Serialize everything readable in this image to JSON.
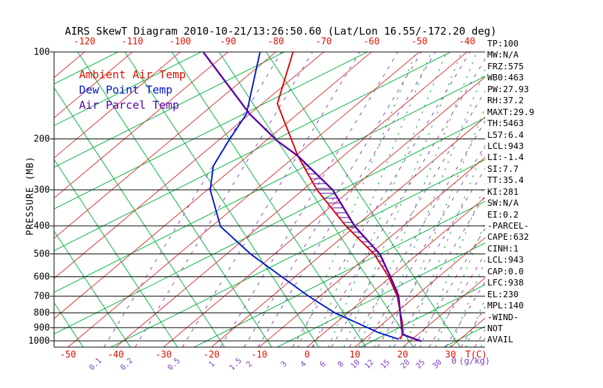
{
  "title": "AIRS SkewT Diagram 2010-10-21/13:26:50.60 (Lat/Lon 16.55/-172.20 deg)",
  "legend": {
    "ambient_label": "Ambient Air Temp",
    "dew_label": "Dew Point Temp",
    "parcel_label": "Air Parcel Temp"
  },
  "axes": {
    "pressure_axis_title": "PRESSURE (MB)",
    "pressure_labels": [
      100,
      200,
      300,
      400,
      500,
      600,
      700,
      800,
      900,
      1000
    ],
    "top_temp_labels": [
      -120,
      -110,
      -100,
      -90,
      -80,
      -70,
      -60,
      -50,
      -40
    ],
    "bottom_temp_labels": [
      -50,
      -40,
      -30,
      -20,
      -10,
      0,
      10,
      20,
      30
    ],
    "temp_unit_label": "T(C)",
    "mixing_ratio_labels": [
      "0.1",
      "0.2",
      "0.5",
      "1",
      "1.5",
      "2",
      "3",
      "4",
      "6",
      "8",
      "10",
      "12",
      "15",
      "20",
      "25",
      "30"
    ],
    "mixing_unit_prefix": "Θ",
    "mixing_unit_label": "(g/kg)"
  },
  "side_panel": {
    "items": [
      "TP:100",
      "MW:N/A",
      "FRZ:575",
      "WB0:463",
      "PW:27.93",
      "RH:37.2",
      "MAXT:29.9",
      "TH:5463",
      "L57:6.4",
      "LCL:943",
      "LI:-1.4",
      "SI:7.7",
      "TT:35.4",
      "KI:281",
      "SW:N/A",
      "EI:0.2",
      "-PARCEL-",
      "CAPE:632",
      "CINH:1",
      "LCL:943",
      "CAP:0.0",
      "LFC:938",
      "EL:230",
      "MPL:140",
      "-WIND-",
      "NOT",
      "AVAIL"
    ]
  },
  "colors": {
    "ambient": "#e00000",
    "dew_point": "#0018cc",
    "parcel": "#5a00a8",
    "isotherm_grid": "#dd3333",
    "adiabat_grid": "#00b33c",
    "mixing_grid": "#8040c0",
    "axis": "#000000",
    "label_red": "#dd1100"
  },
  "chart_data": {
    "type": "line",
    "title": "AIRS SkewT Diagram 2010-10-21/13:26:50.60 (Lat/Lon 16.55/-172.20 deg)",
    "xlabel": "Temperature (C), skewed axis",
    "ylabel": "Pressure (MB), log scale",
    "x_range_at_surface": [
      -50,
      30
    ],
    "y_range": [
      100,
      1000
    ],
    "grid": {
      "isotherm_step_c": 10,
      "isotherm_min_c": -160,
      "isotherm_max_c": 60,
      "mixing_ratio_lines_g_kg": [
        0.1,
        0.2,
        0.5,
        1,
        1.5,
        2,
        3,
        4,
        6,
        8,
        10,
        12,
        15,
        20,
        25,
        30
      ]
    },
    "series": [
      {
        "name": "Ambient Air Temp",
        "color_key": "ambient",
        "points_p_t": [
          [
            100,
            -76.4
          ],
          [
            151,
            -66.8
          ],
          [
            229,
            -49.5
          ],
          [
            300,
            -37.1
          ],
          [
            402,
            -21.8
          ],
          [
            501,
            -9.1
          ],
          [
            598,
            -0.6
          ],
          [
            699,
            6.1
          ],
          [
            800,
            11.0
          ],
          [
            869,
            14.0
          ],
          [
            950,
            16.8
          ],
          [
            987,
            17.5
          ]
        ]
      },
      {
        "name": "Dew Point Temp",
        "color_key": "dew_point",
        "points_p_t": [
          [
            100,
            -83.3
          ],
          [
            164,
            -70.7
          ],
          [
            201,
            -67.9
          ],
          [
            248,
            -64.7
          ],
          [
            300,
            -59.4
          ],
          [
            402,
            -48.1
          ],
          [
            501,
            -34.9
          ],
          [
            598,
            -23.0
          ],
          [
            699,
            -12.5
          ],
          [
            800,
            -2.7
          ],
          [
            935,
            11.2
          ],
          [
            987,
            17.2
          ]
        ]
      },
      {
        "name": "Air Parcel Temp",
        "color_key": "parcel",
        "points_p_t": [
          [
            100,
            -95.2
          ],
          [
            164,
            -70.0
          ],
          [
            203,
            -57.6
          ],
          [
            229,
            -49.5
          ],
          [
            300,
            -33.8
          ],
          [
            402,
            -20.0
          ],
          [
            501,
            -7.9
          ],
          [
            598,
            -0.2
          ],
          [
            699,
            6.4
          ],
          [
            815,
            11.6
          ],
          [
            950,
            16.8
          ],
          [
            1004,
            22.5
          ]
        ]
      }
    ],
    "hatch_between": [
      "Ambient Air Temp",
      "Air Parcel Temp"
    ],
    "legend_position": "top-left inside plot"
  }
}
